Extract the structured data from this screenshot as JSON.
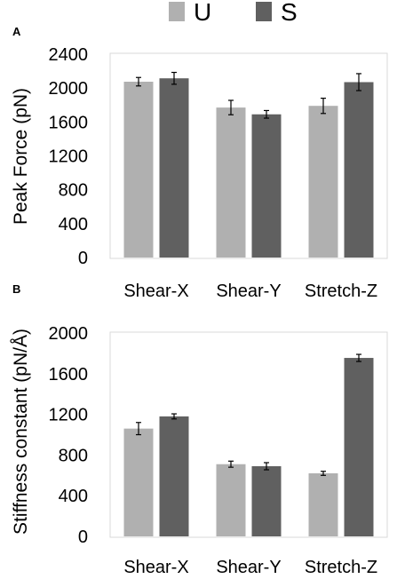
{
  "legend": {
    "items": [
      {
        "label": "U",
        "color": "#b0b0b0"
      },
      {
        "label": "S",
        "color": "#606060"
      }
    ]
  },
  "chart_data": [
    {
      "panel_label": "A",
      "type": "bar",
      "categories": [
        "Shear-X",
        "Shear-Y",
        "Stretch-Z"
      ],
      "series": [
        {
          "name": "U",
          "values": [
            2075,
            1770,
            1790
          ],
          "errors": [
            50,
            85,
            90
          ],
          "color": "#b0b0b0"
        },
        {
          "name": "S",
          "values": [
            2115,
            1690,
            2070
          ],
          "errors": [
            70,
            45,
            100
          ],
          "color": "#606060"
        }
      ],
      "ylabel": "Peak Force (pN)",
      "ylim": [
        0,
        2400
      ],
      "yticks": [
        0,
        400,
        800,
        1200,
        1600,
        2000,
        2400
      ],
      "grid": false
    },
    {
      "panel_label": "B",
      "type": "bar",
      "categories": [
        "Shear-X",
        "Shear-Y",
        "Stretch-Z"
      ],
      "series": [
        {
          "name": "U",
          "values": [
            1060,
            710,
            620
          ],
          "errors": [
            60,
            30,
            20
          ],
          "color": "#b0b0b0"
        },
        {
          "name": "S",
          "values": [
            1180,
            690,
            1755
          ],
          "errors": [
            25,
            35,
            35
          ],
          "color": "#606060"
        }
      ],
      "ylabel": "Stiffness constant (pN/Å)",
      "ylim": [
        0,
        2000
      ],
      "yticks": [
        0,
        400,
        800,
        1200,
        1600,
        2000
      ],
      "grid": false
    }
  ]
}
